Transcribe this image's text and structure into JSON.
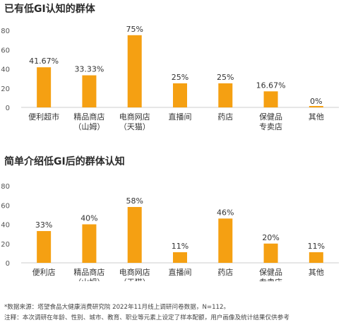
{
  "chart_data": [
    {
      "type": "bar",
      "title": "已有低GI认知的群体",
      "categories": [
        "便利超市",
        "精品商店\n（山姆）",
        "电商网店\n（天猫）",
        "直播间",
        "药店",
        "保健品\n专卖店",
        "其他"
      ],
      "values": [
        41.67,
        33.33,
        75,
        25,
        25,
        16.67,
        0
      ],
      "value_labels": [
        "41.67%",
        "33.33%",
        "75%",
        "25%",
        "25%",
        "16.67%",
        "0%"
      ],
      "yticks": [
        0,
        20,
        40,
        60,
        80
      ],
      "ylim": [
        0,
        80
      ],
      "bar_color": "#F5A012",
      "grid": false
    },
    {
      "type": "bar",
      "title": "简单介绍低GI后的群体认知",
      "categories": [
        "便利店",
        "精品商店\n（山姆）",
        "电商网店\n（天猫）",
        "直播间",
        "药店",
        "保健品\n专卖店",
        "其他"
      ],
      "values": [
        33,
        40,
        58,
        11,
        46,
        20,
        11
      ],
      "value_labels": [
        "33%",
        "40%",
        "58%",
        "11%",
        "46%",
        "20%",
        "11%"
      ],
      "yticks": [
        0,
        20,
        40,
        60,
        80
      ],
      "ylim": [
        0,
        80
      ],
      "bar_color": "#F5A012",
      "grid": false
    }
  ],
  "footnotes": {
    "source": "*数据来源：塔望食品大健康消费研究院 2022年11月线上调研问卷数据，N=112。",
    "note": "注释：本次调研在年龄、性别、城市、教育、职业等元素上设定了样本配额，用户画像及统计结果仅供参考"
  }
}
